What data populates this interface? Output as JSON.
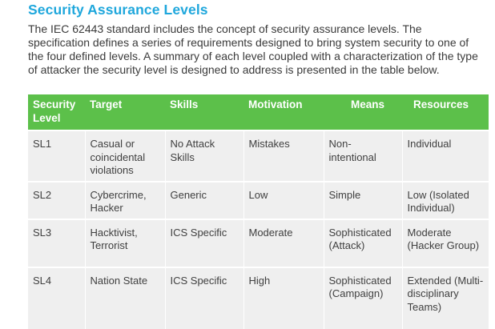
{
  "heading": "Security Assurance Levels",
  "intro": "The IEC 62443 standard includes the concept of security assurance levels. The specification defines a series of requirements designed to bring system security to one of the four defined levels. A summary of each level coupled with a characterization of the type of attacker the security level is designed to address is presented in the table below.",
  "table": {
    "headers": {
      "level": "Security Level",
      "target": "Target",
      "skills": "Skills",
      "motivation": "Motivation",
      "means": "Means",
      "resources": "Resources"
    },
    "rows": [
      {
        "level": "SL1",
        "target": "Casual or coincidental violations",
        "skills": "No Attack Skills",
        "motivation": "Mistakes",
        "means": "Non-intentional",
        "resources": "Individual"
      },
      {
        "level": "SL2",
        "target": "Cybercrime, Hacker",
        "skills": "Generic",
        "motivation": "Low",
        "means": "Simple",
        "resources": "Low (Isolated Individual)"
      },
      {
        "level": "SL3",
        "target": "Hacktivist, Terrorist",
        "skills": "ICS Specific",
        "motivation": "Moderate",
        "means": "Sophisticated (Attack)",
        "resources": "Moderate (Hacker Group)"
      },
      {
        "level": "SL4",
        "target": "Nation State",
        "skills": "ICS Specific",
        "motivation": "High",
        "means": "Sophisticated (Campaign)",
        "resources": "Extended (Multi-disciplinary Teams)"
      }
    ]
  },
  "colors": {
    "heading": "#1fa7dc",
    "header_bg": "#5cc04a",
    "row_bg": "#efefef"
  }
}
